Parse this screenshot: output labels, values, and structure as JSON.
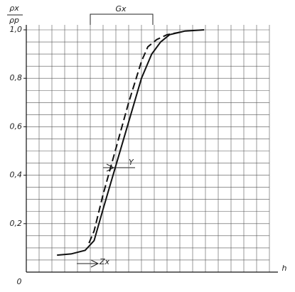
{
  "chart_data": {
    "type": "line",
    "y_label_numerator": "ρx",
    "y_label_denominator": "ρp",
    "x_label": "h",
    "annotations": {
      "width": "Gx",
      "offset": "Y",
      "shift": "Zx"
    },
    "series": [
      {
        "style": "solid",
        "color": "#111111",
        "x": [
          2.4,
          3.5,
          4.6,
          5.3,
          6,
          7,
          8,
          9,
          9.8,
          10.5,
          11.2,
          12.4,
          13.9
        ],
        "values": [
          0.07,
          0.075,
          0.09,
          0.13,
          0.26,
          0.44,
          0.62,
          0.8,
          0.9,
          0.95,
          0.98,
          0.995,
          1.0
        ]
      },
      {
        "style": "dashed",
        "color": "#111111",
        "x": [
          4.9,
          5.3,
          6,
          7,
          8,
          9,
          9.5,
          10.2,
          11,
          12
        ],
        "values": [
          0.12,
          0.17,
          0.32,
          0.51,
          0.7,
          0.87,
          0.93,
          0.96,
          0.98,
          0.99
        ]
      }
    ],
    "xlim": [
      0,
      19
    ],
    "ylim": [
      0,
      1.0
    ],
    "xticks": [
      0
    ],
    "yticks": [
      {
        "value": 0.2,
        "label": "0,2"
      },
      {
        "value": 0.4,
        "label": "0,4"
      },
      {
        "value": 0.6,
        "label": "0,6"
      },
      {
        "value": 0.8,
        "label": "0,8"
      },
      {
        "value": 1.0,
        "label": "1,0"
      }
    ],
    "x_gridlines": [
      1,
      2,
      3,
      4,
      5,
      6,
      7,
      8,
      9,
      10,
      11,
      12,
      13,
      14,
      15,
      16,
      17,
      18,
      19
    ],
    "y_gridlines": [
      0.05,
      0.1,
      0.15,
      0.2,
      0.25,
      0.3,
      0.35,
      0.4,
      0.45,
      0.5,
      0.55,
      0.6,
      0.65,
      0.7,
      0.75,
      0.8,
      0.85,
      0.9,
      0.95,
      1.0
    ],
    "grid": true
  }
}
